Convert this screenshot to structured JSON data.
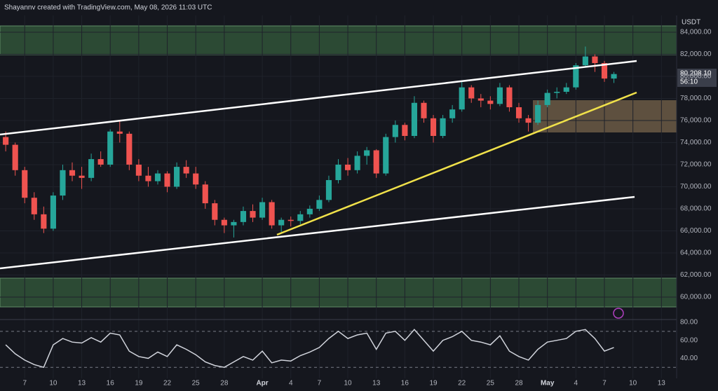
{
  "header": {
    "title": "Shayannv created with TradingView.com, May 08, 2026 11:03 UTC"
  },
  "chart_data": [
    {
      "type": "candlestick",
      "currency": "USDT",
      "last_price_label": "80,208.10",
      "countdown": "56:10",
      "up_color": "#26a69a",
      "down_color": "#ef5350",
      "grid": true,
      "xlim": [
        -0.6,
        70.6
      ],
      "ylim": [
        58030,
        85520
      ],
      "xticks": [
        {
          "value": 2,
          "label": "7"
        },
        {
          "value": 5,
          "label": "10"
        },
        {
          "value": 8,
          "label": "13"
        },
        {
          "value": 11,
          "label": "16"
        },
        {
          "value": 14,
          "label": "19"
        },
        {
          "value": 17,
          "label": "22"
        },
        {
          "value": 20,
          "label": "25"
        },
        {
          "value": 23,
          "label": "28"
        },
        {
          "value": 27,
          "label": "Apr"
        },
        {
          "value": 30,
          "label": "4"
        },
        {
          "value": 33,
          "label": "7"
        },
        {
          "value": 36,
          "label": "10"
        },
        {
          "value": 39,
          "label": "13"
        },
        {
          "value": 42,
          "label": "16"
        },
        {
          "value": 45,
          "label": "19"
        },
        {
          "value": 48,
          "label": "22"
        },
        {
          "value": 51,
          "label": "25"
        },
        {
          "value": 54,
          "label": "28"
        },
        {
          "value": 57,
          "label": "May"
        },
        {
          "value": 60,
          "label": "4"
        },
        {
          "value": 63,
          "label": "7"
        },
        {
          "value": 66,
          "label": "10"
        },
        {
          "value": 69,
          "label": "13"
        }
      ],
      "yticks": [
        {
          "value": 84000,
          "label": "84,000.00"
        },
        {
          "value": 82000,
          "label": "82,000.00"
        },
        {
          "value": 80000,
          "label": "80,000.00"
        },
        {
          "value": 78000,
          "label": "78,000.00"
        },
        {
          "value": 76000,
          "label": "76,000.00"
        },
        {
          "value": 74000,
          "label": "74,000.00"
        },
        {
          "value": 72000,
          "label": "72,000.00"
        },
        {
          "value": 70000,
          "label": "70,000.00"
        },
        {
          "value": 68000,
          "label": "68,000.00"
        },
        {
          "value": 66000,
          "label": "66,000.00"
        },
        {
          "value": 64000,
          "label": "64,000.00"
        },
        {
          "value": 62000,
          "label": "62,000.00"
        },
        {
          "value": 60000,
          "label": "60,000.00"
        }
      ],
      "ohlc": [
        [
          74500,
          75000,
          73200,
          73800
        ],
        [
          73800,
          74000,
          71000,
          71500
        ],
        [
          71500,
          71800,
          68500,
          69000
        ],
        [
          69000,
          69500,
          67000,
          67500
        ],
        [
          67500,
          68200,
          65800,
          66200
        ],
        [
          66200,
          69500,
          66000,
          69200
        ],
        [
          69200,
          72000,
          68800,
          71500
        ],
        [
          71500,
          72200,
          70500,
          71000
        ],
        [
          71000,
          71800,
          69800,
          70800
        ],
        [
          70800,
          73000,
          70500,
          72500
        ],
        [
          72500,
          73200,
          71800,
          72000
        ],
        [
          72000,
          75200,
          71800,
          75000
        ],
        [
          75000,
          76000,
          74000,
          74800
        ],
        [
          74800,
          75000,
          71500,
          72000
        ],
        [
          72000,
          72500,
          70500,
          71000
        ],
        [
          71000,
          71800,
          70000,
          70500
        ],
        [
          70500,
          71500,
          70200,
          71200
        ],
        [
          71200,
          71400,
          69500,
          70000
        ],
        [
          70000,
          72200,
          69800,
          71800
        ],
        [
          71800,
          72400,
          70800,
          71200
        ],
        [
          71200,
          71800,
          69800,
          70200
        ],
        [
          70200,
          70500,
          68000,
          68500
        ],
        [
          68500,
          68800,
          66500,
          67000
        ],
        [
          67000,
          67200,
          65800,
          66500
        ],
        [
          66500,
          67000,
          65400,
          66800
        ],
        [
          66800,
          68200,
          66500,
          67800
        ],
        [
          67800,
          68400,
          66800,
          67200
        ],
        [
          67200,
          69000,
          67000,
          68600
        ],
        [
          68600,
          68800,
          66200,
          66500
        ],
        [
          66500,
          67200,
          65900,
          67000
        ],
        [
          67000,
          67300,
          66400,
          66900
        ],
        [
          66900,
          67800,
          66600,
          67500
        ],
        [
          67500,
          68300,
          67200,
          68000
        ],
        [
          68000,
          69200,
          67800,
          68800
        ],
        [
          68800,
          71000,
          68600,
          70600
        ],
        [
          70600,
          72500,
          70300,
          72000
        ],
        [
          72000,
          72600,
          71000,
          71500
        ],
        [
          71500,
          73200,
          71200,
          72800
        ],
        [
          72800,
          73600,
          72000,
          73300
        ],
        [
          73300,
          73400,
          70800,
          71200
        ],
        [
          71200,
          74800,
          71000,
          74500
        ],
        [
          74500,
          76000,
          74000,
          75600
        ],
        [
          75600,
          75800,
          74200,
          74600
        ],
        [
          74600,
          78200,
          74400,
          77600
        ],
        [
          77600,
          77800,
          75800,
          76200
        ],
        [
          76200,
          76500,
          74000,
          74600
        ],
        [
          74600,
          76500,
          74400,
          76200
        ],
        [
          76200,
          77400,
          75800,
          77000
        ],
        [
          77000,
          79500,
          76800,
          79000
        ],
        [
          79000,
          79200,
          77600,
          78000
        ],
        [
          78000,
          78400,
          77200,
          77800
        ],
        [
          77800,
          78200,
          77000,
          77500
        ],
        [
          77500,
          79400,
          77300,
          79000
        ],
        [
          79000,
          79200,
          76800,
          77200
        ],
        [
          77200,
          77600,
          75800,
          76200
        ],
        [
          76200,
          76500,
          75000,
          75800
        ],
        [
          75800,
          77800,
          75600,
          77400
        ],
        [
          77400,
          78800,
          77200,
          78500
        ],
        [
          78500,
          79000,
          78000,
          78600
        ],
        [
          78600,
          79400,
          78400,
          79000
        ],
        [
          79000,
          81200,
          78800,
          81000
        ],
        [
          81000,
          82700,
          80800,
          81800
        ],
        [
          81800,
          82000,
          80400,
          81200
        ],
        [
          81200,
          81400,
          79500,
          79800
        ],
        [
          79800,
          80400,
          79400,
          80208.1
        ]
      ]
    },
    {
      "type": "line",
      "color": "#d1d4dc",
      "xlim": [
        -0.6,
        70.6
      ],
      "ylim": [
        17.7,
        83.1
      ],
      "levels": [
        70,
        30
      ],
      "yticks": [
        {
          "value": 80,
          "label": "80.00"
        },
        {
          "value": 60,
          "label": "60.00"
        },
        {
          "value": 40,
          "label": "40.00"
        }
      ],
      "values": [
        55,
        45,
        38,
        33,
        30,
        55,
        62,
        58,
        57,
        63,
        58,
        68,
        66,
        48,
        42,
        40,
        47,
        42,
        55,
        50,
        44,
        36,
        32,
        30,
        36,
        42,
        38,
        48,
        35,
        38,
        37,
        43,
        47,
        52,
        62,
        70,
        62,
        66,
        68,
        50,
        68,
        70,
        60,
        72,
        60,
        48,
        60,
        64,
        70,
        60,
        58,
        55,
        65,
        48,
        42,
        38,
        50,
        58,
        60,
        62,
        70,
        72,
        62,
        48,
        52
      ]
    }
  ]
}
